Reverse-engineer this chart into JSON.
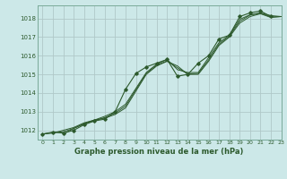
{
  "title": "Graphe pression niveau de la mer (hPa)",
  "bg_color": "#cce8e8",
  "grid_color": "#b0c8c8",
  "line_color": "#2d5a2d",
  "xlim": [
    -0.5,
    23
  ],
  "ylim": [
    1011.5,
    1018.7
  ],
  "yticks": [
    1012,
    1013,
    1014,
    1015,
    1016,
    1017,
    1018
  ],
  "xticks": [
    0,
    1,
    2,
    3,
    4,
    5,
    6,
    7,
    8,
    9,
    10,
    11,
    12,
    13,
    14,
    15,
    16,
    17,
    18,
    19,
    20,
    21,
    22,
    23
  ],
  "series": [
    {
      "x": [
        0,
        1,
        2,
        3,
        4,
        5,
        6,
        7,
        8,
        9,
        10,
        11,
        12,
        13,
        14,
        15,
        16,
        17,
        18,
        19,
        20,
        21,
        22
      ],
      "y": [
        1011.8,
        1011.9,
        1011.85,
        1012.0,
        1012.3,
        1012.5,
        1012.6,
        1013.0,
        1014.2,
        1015.05,
        1015.4,
        1015.6,
        1015.8,
        1014.9,
        1015.0,
        1015.6,
        1016.0,
        1016.9,
        1017.1,
        1018.1,
        1018.3,
        1018.4,
        1018.1
      ],
      "marker": true
    },
    {
      "x": [
        0,
        1,
        2,
        3,
        4,
        5,
        6,
        7,
        8,
        9,
        10,
        11,
        12,
        13,
        14,
        15,
        16,
        17,
        18,
        19,
        20,
        21,
        22,
        23
      ],
      "y": [
        1011.8,
        1011.85,
        1012.0,
        1012.15,
        1012.4,
        1012.55,
        1012.65,
        1012.85,
        1013.2,
        1014.1,
        1015.0,
        1015.45,
        1015.7,
        1015.45,
        1015.0,
        1015.0,
        1015.7,
        1016.55,
        1017.0,
        1017.75,
        1018.1,
        1018.25,
        1018.05,
        1018.1
      ],
      "marker": false
    },
    {
      "x": [
        2,
        3,
        4,
        5,
        6,
        7,
        8,
        9,
        10,
        11,
        12,
        13,
        14,
        15,
        16,
        17,
        18,
        19,
        20,
        21,
        22,
        23
      ],
      "y": [
        1011.8,
        1012.1,
        1012.35,
        1012.55,
        1012.75,
        1013.0,
        1013.4,
        1014.25,
        1015.1,
        1015.55,
        1015.8,
        1015.25,
        1015.1,
        1015.1,
        1015.9,
        1016.7,
        1017.1,
        1017.95,
        1018.2,
        1018.3,
        1018.15,
        1018.1
      ],
      "marker": false
    },
    {
      "x": [
        0,
        1,
        2,
        3,
        4,
        5,
        6,
        7,
        8,
        9,
        10,
        11,
        12,
        13,
        14,
        15,
        16,
        17,
        18,
        19,
        20,
        21,
        22,
        23
      ],
      "y": [
        1011.8,
        1011.88,
        1011.92,
        1012.1,
        1012.35,
        1012.52,
        1012.68,
        1012.92,
        1013.3,
        1014.18,
        1015.05,
        1015.5,
        1015.72,
        1015.35,
        1015.02,
        1015.05,
        1015.78,
        1016.62,
        1017.05,
        1017.85,
        1018.18,
        1018.28,
        1018.08,
        1018.1
      ],
      "marker": false
    }
  ]
}
